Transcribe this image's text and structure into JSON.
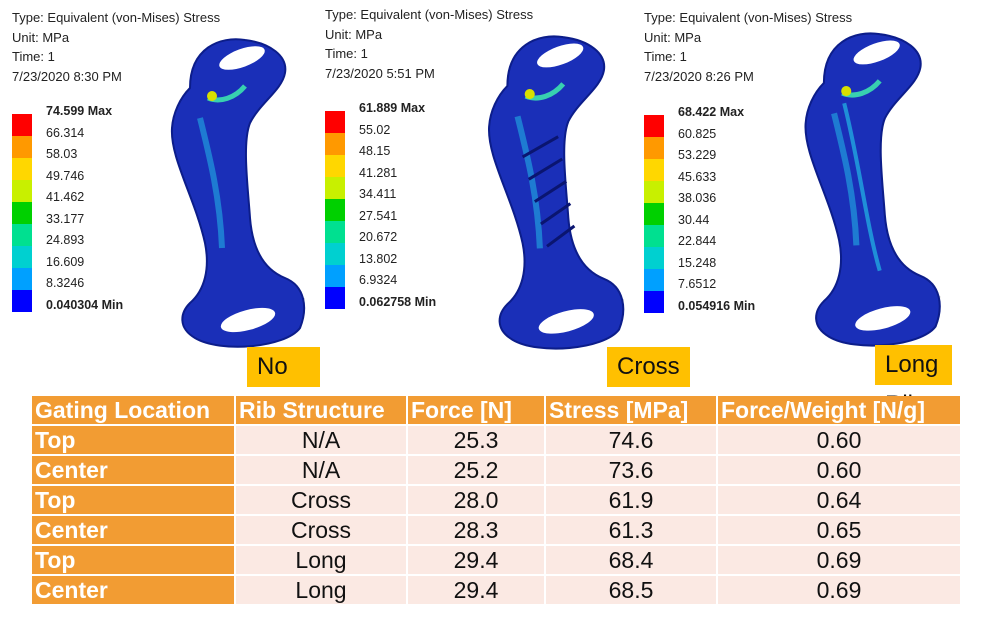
{
  "panels": [
    {
      "info": [
        "Type: Equivalent (von-Mises) Stress",
        "Unit: MPa",
        "Time: 1",
        "7/23/2020 8:30 PM"
      ],
      "legend": [
        "74.599 Max",
        "66.314",
        "58.03",
        "49.746",
        "41.462",
        "33.177",
        "24.893",
        "16.609",
        "8.3246",
        "0.040304 Min"
      ],
      "label": "No Rib"
    },
    {
      "info": [
        "Type: Equivalent (von-Mises) Stress",
        "Unit: MPa",
        "Time: 1",
        "7/23/2020 5:51 PM"
      ],
      "legend": [
        "61.889 Max",
        "55.02",
        "48.15",
        "41.281",
        "34.411",
        "27.541",
        "20.672",
        "13.802",
        "6.9324",
        "0.062758 Min"
      ],
      "label": "Cross Rib"
    },
    {
      "info": [
        "Type: Equivalent (von-Mises) Stress",
        "Unit: MPa",
        "Time: 1",
        "7/23/2020 8:26 PM"
      ],
      "legend": [
        "68.422 Max",
        "60.825",
        "53.229",
        "45.633",
        "38.036",
        "30.44",
        "22.844",
        "15.248",
        "7.6512",
        "0.054916 Min"
      ],
      "label": "Long Rib"
    }
  ],
  "legend_colors": [
    "#ff0000",
    "#ff9900",
    "#ffd700",
    "#c8f000",
    "#00d000",
    "#00e090",
    "#00d0d0",
    "#00a0ff",
    "#0000ff"
  ],
  "part_colors": {
    "body": "#1a2fb8",
    "edge": "#0c1d8a",
    "mid": "#1f8fd8",
    "hot": "#38d0b0",
    "peak": "#d8e000"
  },
  "table": {
    "headers": [
      "Gating Location",
      "Rib Structure",
      "Force [N]",
      "Stress [MPa]",
      "Force/Weight [N/g]"
    ],
    "rows": [
      [
        "Top",
        "N/A",
        "25.3",
        "74.6",
        "0.60"
      ],
      [
        "Center",
        "N/A",
        "25.2",
        "73.6",
        "0.60"
      ],
      [
        "Top",
        "Cross",
        "28.0",
        "61.9",
        "0.64"
      ],
      [
        "Center",
        "Cross",
        "28.3",
        "61.3",
        "0.65"
      ],
      [
        "Top",
        "Long",
        "29.4",
        "68.4",
        "0.69"
      ],
      [
        "Center",
        "Long",
        "29.4",
        "68.5",
        "0.69"
      ]
    ]
  }
}
